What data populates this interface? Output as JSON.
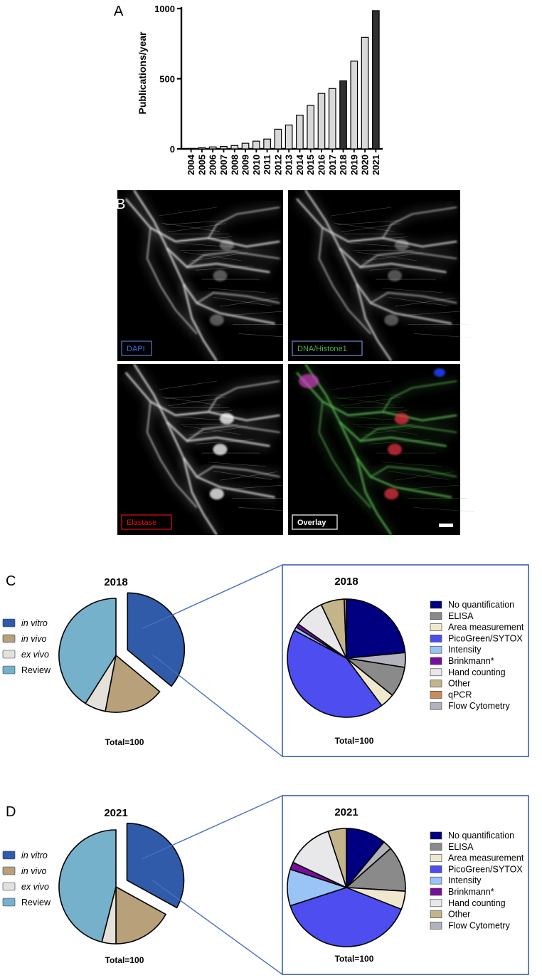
{
  "panels": {
    "a": "A",
    "b": "B",
    "c": "C",
    "d": "D"
  },
  "chart_data": [
    {
      "type": "bar",
      "ylabel": "Publications/year",
      "ylim": [
        0,
        1000
      ],
      "yticks": [
        0,
        500,
        1000
      ],
      "categories": [
        "2004",
        "2005",
        "2006",
        "2007",
        "2008",
        "2009",
        "2010",
        "2011",
        "2012",
        "2013",
        "2014",
        "2015",
        "2016",
        "2017",
        "2018",
        "2019",
        "2020",
        "2021"
      ],
      "values": [
        3,
        8,
        14,
        17,
        24,
        40,
        55,
        70,
        140,
        170,
        240,
        310,
        395,
        430,
        485,
        625,
        795,
        985
      ],
      "highlighted": [
        "2018",
        "2021"
      ],
      "bar_color": "#d9d9d9",
      "highlight_color": "#303030"
    },
    {
      "type": "pie",
      "title": "2018",
      "total": "Total=100",
      "slices": [
        {
          "label": "in vitro",
          "value": 36,
          "color": "#2f5ba8",
          "exploded": true
        },
        {
          "label": "in vivo",
          "value": 17,
          "color": "#b8a07a"
        },
        {
          "label": "ex vivo",
          "value": 6,
          "color": "#e4e1da"
        },
        {
          "label": "Review",
          "value": 41,
          "color": "#76b1cc"
        }
      ]
    },
    {
      "type": "pie",
      "title": "2018",
      "total": "Total=100",
      "slices": [
        {
          "label": "No quantification",
          "value": 23.5,
          "color": "#000080"
        },
        {
          "label": "Flow Cytometry",
          "value": 4,
          "color": "#b2b2bd"
        },
        {
          "label": "ELISA",
          "value": 8.3,
          "color": "#8a8a8a"
        },
        {
          "label": "Area measurement",
          "value": 4,
          "color": "#efe8cf"
        },
        {
          "label": "PicoGreen/SYTOX",
          "value": 43,
          "color": "#4d4df0"
        },
        {
          "label": "Intensity",
          "value": 1,
          "color": "#99c4f5"
        },
        {
          "label": "Brinkmann*",
          "value": 1,
          "color": "#7a0d9e"
        },
        {
          "label": "Hand counting",
          "value": 8.2,
          "color": "#e8e8ea"
        },
        {
          "label": "Other",
          "value": 6.4,
          "color": "#c3b589"
        },
        {
          "label": "qPCR",
          "value": 0.6,
          "color": "#cc8c5a"
        }
      ],
      "legend": [
        "No quantification",
        "ELISA",
        "Area measurement",
        "PicoGreen/SYTOX",
        "Intensity",
        "Brinkmann*",
        "Hand counting",
        "Other",
        "qPCR",
        "Flow Cytometry"
      ]
    },
    {
      "type": "pie",
      "title": "2021",
      "total": "Total=100",
      "slices": [
        {
          "label": "in vitro",
          "value": 33,
          "color": "#2f5ba8",
          "exploded": true
        },
        {
          "label": "in vivo",
          "value": 17,
          "color": "#b8a07a"
        },
        {
          "label": "ex vivo",
          "value": 4,
          "color": "#e4e1da"
        },
        {
          "label": "Review",
          "value": 46,
          "color": "#76b1cc"
        }
      ]
    },
    {
      "type": "pie",
      "title": "2021",
      "total": "Total=100",
      "slices": [
        {
          "label": "No quantification",
          "value": 11,
          "color": "#000080"
        },
        {
          "label": "Flow Cytometry",
          "value": 2.5,
          "color": "#b2b2bd"
        },
        {
          "label": "ELISA",
          "value": 12.5,
          "color": "#8a8a8a"
        },
        {
          "label": "Area measurement",
          "value": 5,
          "color": "#efe8cf"
        },
        {
          "label": "PicoGreen/SYTOX",
          "value": 39,
          "color": "#4d4df0"
        },
        {
          "label": "Intensity",
          "value": 10,
          "color": "#99c4f5"
        },
        {
          "label": "Brinkmann*",
          "value": 2,
          "color": "#7a0d9e"
        },
        {
          "label": "Hand counting",
          "value": 13,
          "color": "#e8e8ea"
        },
        {
          "label": "Other",
          "value": 5,
          "color": "#c3b589"
        }
      ],
      "legend": [
        "No quantification",
        "ELISA",
        "Area measurement",
        "PicoGreen/SYTOX",
        "Intensity",
        "Brinkmann*",
        "Hand counting",
        "Other",
        "Flow Cytometry"
      ]
    }
  ],
  "micrographs": [
    {
      "label": "DAPI",
      "label_color": "#3d6be0",
      "border_color": "#5a78c8"
    },
    {
      "label": "DNA/Histone1",
      "label_color": "#4caf50",
      "border_color": "#6a8fd0"
    },
    {
      "label": "Elastase",
      "label_color": "#e01010",
      "border_color": "#e01010"
    },
    {
      "label": "Overlay",
      "label_color": "#ffffff",
      "border_color": "#ffffff"
    }
  ]
}
